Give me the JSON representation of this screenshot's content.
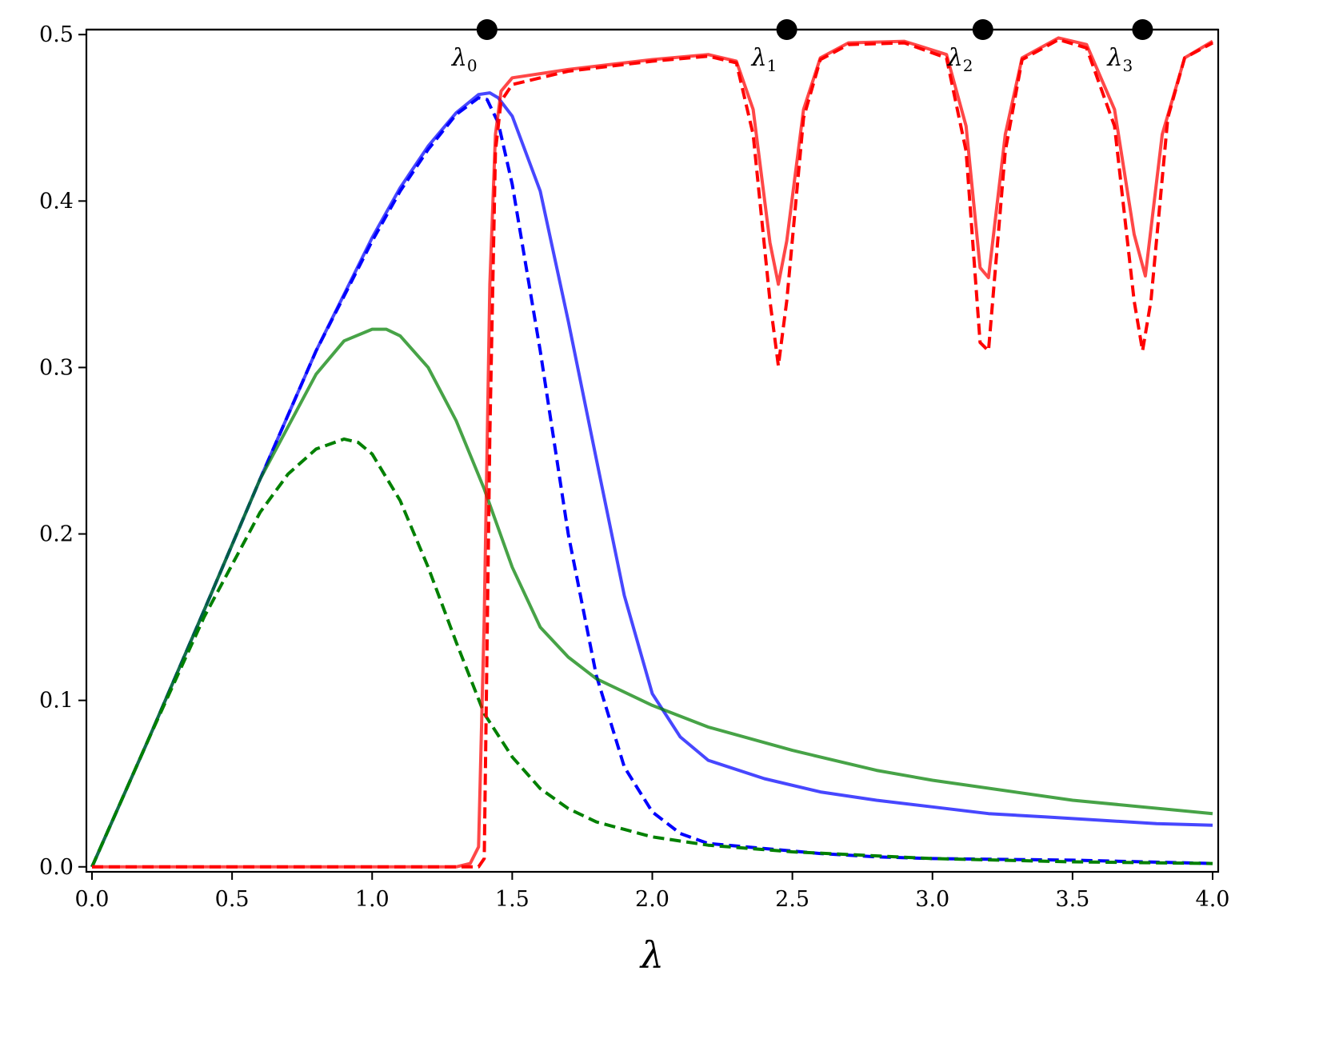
{
  "chart_data": {
    "type": "line",
    "title": "",
    "xlabel": "λ",
    "ylabel": "",
    "xlim": [
      -0.02,
      4.02
    ],
    "ylim": [
      -0.003,
      0.503
    ],
    "grid": false,
    "legend": "none",
    "xticks": [
      "0.0",
      "0.5",
      "1.0",
      "1.5",
      "2.0",
      "2.5",
      "3.0",
      "3.5",
      "4.0"
    ],
    "yticks": [
      "0.0",
      "0.1",
      "0.2",
      "0.3",
      "0.4",
      "0.5"
    ],
    "markers": {
      "y": 0.503,
      "color": "#000000",
      "points": [
        {
          "x": 1.41,
          "label": "λ",
          "subscript": "0"
        },
        {
          "x": 2.48,
          "label": "λ",
          "subscript": "1"
        },
        {
          "x": 3.18,
          "label": "λ",
          "subscript": "2"
        },
        {
          "x": 3.75,
          "label": "λ",
          "subscript": "3"
        }
      ]
    },
    "series": [
      {
        "color": "#0000ff",
        "opacity": 0.72,
        "dash": "solid",
        "x": [
          0,
          0.2,
          0.4,
          0.6,
          0.8,
          1.0,
          1.1,
          1.2,
          1.3,
          1.38,
          1.42,
          1.45,
          1.5,
          1.6,
          1.7,
          1.8,
          1.9,
          2.0,
          2.1,
          2.2,
          2.4,
          2.6,
          2.8,
          3.0,
          3.2,
          3.4,
          3.6,
          3.8,
          4.0
        ],
        "y": [
          0,
          0.076,
          0.154,
          0.233,
          0.31,
          0.378,
          0.408,
          0.433,
          0.453,
          0.464,
          0.465,
          0.462,
          0.451,
          0.406,
          0.328,
          0.245,
          0.163,
          0.104,
          0.078,
          0.064,
          0.053,
          0.045,
          0.04,
          0.036,
          0.032,
          0.03,
          0.028,
          0.026,
          0.025
        ]
      },
      {
        "color": "#0000ff",
        "opacity": 1,
        "dash": "dashed",
        "x": [
          0,
          0.2,
          0.4,
          0.6,
          0.8,
          1.0,
          1.1,
          1.2,
          1.3,
          1.38,
          1.41,
          1.45,
          1.5,
          1.6,
          1.7,
          1.8,
          1.9,
          2.0,
          2.1,
          2.2,
          2.4,
          2.6,
          2.8,
          3.0,
          3.5,
          4.0
        ],
        "y": [
          0,
          0.076,
          0.154,
          0.233,
          0.31,
          0.376,
          0.406,
          0.431,
          0.452,
          0.462,
          0.461,
          0.447,
          0.41,
          0.31,
          0.2,
          0.115,
          0.06,
          0.033,
          0.02,
          0.014,
          0.011,
          0.008,
          0.006,
          0.005,
          0.004,
          0.002
        ]
      },
      {
        "color": "#008000",
        "opacity": 0.72,
        "dash": "solid",
        "x": [
          0,
          0.2,
          0.4,
          0.6,
          0.8,
          0.9,
          1.0,
          1.05,
          1.1,
          1.2,
          1.3,
          1.4,
          1.5,
          1.6,
          1.7,
          1.8,
          2.0,
          2.2,
          2.5,
          2.8,
          3.0,
          3.5,
          4.0
        ],
        "y": [
          0,
          0.076,
          0.154,
          0.233,
          0.296,
          0.316,
          0.323,
          0.323,
          0.319,
          0.3,
          0.268,
          0.227,
          0.18,
          0.144,
          0.126,
          0.113,
          0.097,
          0.084,
          0.07,
          0.058,
          0.052,
          0.04,
          0.032
        ]
      },
      {
        "color": "#008000",
        "opacity": 1,
        "dash": "dashed",
        "x": [
          0,
          0.2,
          0.4,
          0.6,
          0.7,
          0.8,
          0.9,
          0.95,
          1.0,
          1.1,
          1.2,
          1.3,
          1.4,
          1.5,
          1.6,
          1.7,
          1.8,
          2.0,
          2.2,
          2.5,
          3.0,
          3.5,
          4.0
        ],
        "y": [
          0,
          0.076,
          0.15,
          0.213,
          0.236,
          0.251,
          0.257,
          0.255,
          0.248,
          0.22,
          0.18,
          0.135,
          0.092,
          0.066,
          0.047,
          0.035,
          0.027,
          0.018,
          0.013,
          0.009,
          0.005,
          0.003,
          0.002
        ]
      },
      {
        "color": "#ff0000",
        "opacity": 0.72,
        "dash": "solid",
        "x": [
          0,
          0.5,
          1.0,
          1.3,
          1.35,
          1.38,
          1.4,
          1.42,
          1.44,
          1.46,
          1.5,
          1.7,
          2.0,
          2.2,
          2.3,
          2.36,
          2.42,
          2.45,
          2.48,
          2.54,
          2.6,
          2.7,
          2.9,
          3.05,
          3.12,
          3.17,
          3.2,
          3.26,
          3.32,
          3.45,
          3.55,
          3.65,
          3.72,
          3.76,
          3.82,
          3.9,
          4.0
        ],
        "y": [
          0,
          0,
          0,
          0.0,
          0.002,
          0.012,
          0.15,
          0.35,
          0.44,
          0.466,
          0.474,
          0.479,
          0.485,
          0.488,
          0.484,
          0.455,
          0.375,
          0.35,
          0.376,
          0.455,
          0.486,
          0.495,
          0.496,
          0.488,
          0.445,
          0.36,
          0.354,
          0.44,
          0.486,
          0.498,
          0.494,
          0.455,
          0.38,
          0.355,
          0.44,
          0.486,
          0.496
        ]
      },
      {
        "color": "#ff0000",
        "opacity": 1,
        "dash": "dashed",
        "x": [
          0,
          0.5,
          1.0,
          1.3,
          1.38,
          1.4,
          1.42,
          1.44,
          1.46,
          1.5,
          1.7,
          2.0,
          2.2,
          2.3,
          2.36,
          2.42,
          2.45,
          2.48,
          2.54,
          2.6,
          2.7,
          2.9,
          3.05,
          3.12,
          3.17,
          3.2,
          3.26,
          3.32,
          3.45,
          3.55,
          3.65,
          3.72,
          3.75,
          3.78,
          3.84,
          3.9,
          4.0
        ],
        "y": [
          0,
          0,
          0,
          0,
          0,
          0.005,
          0.26,
          0.43,
          0.46,
          0.47,
          0.478,
          0.484,
          0.487,
          0.483,
          0.44,
          0.34,
          0.301,
          0.34,
          0.45,
          0.485,
          0.494,
          0.495,
          0.486,
          0.43,
          0.315,
          0.31,
          0.43,
          0.485,
          0.497,
          0.492,
          0.445,
          0.34,
          0.31,
          0.34,
          0.45,
          0.486,
          0.495
        ]
      }
    ]
  }
}
